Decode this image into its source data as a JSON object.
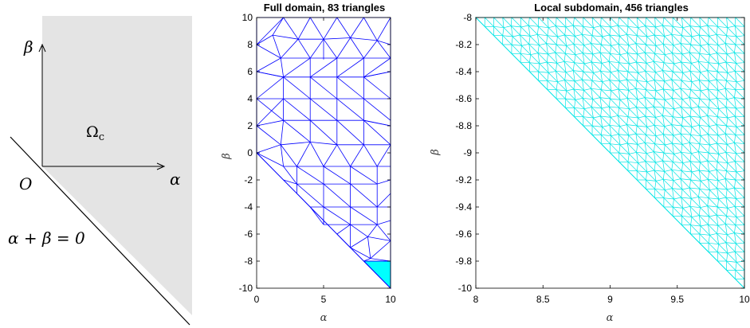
{
  "sketch": {
    "beta_label": "β",
    "alpha_label": "α",
    "origin_label": "O",
    "omega_label": "Ωc",
    "line_label": "α + β = 0",
    "region_color": "#e4e4e4"
  },
  "panels": [
    {
      "title": "Full domain, 83 triangles",
      "xlabel": "α",
      "ylabel": "β",
      "xlim": [
        0,
        10
      ],
      "ylim": [
        -10,
        10
      ],
      "xticks": [
        "0",
        "5",
        "10"
      ],
      "yticks": [
        "-10",
        "-8",
        "-6",
        "-4",
        "-2",
        "0",
        "2",
        "4",
        "6",
        "8",
        "10"
      ],
      "mesh_color": "#0000ff",
      "highlight_color": "#00ffff"
    },
    {
      "title": "Local subdomain, 456 triangles",
      "xlabel": "α",
      "ylabel": "β",
      "xlim": [
        8,
        10
      ],
      "ylim": [
        -10,
        -8
      ],
      "xticks": [
        "8",
        "8.5",
        "9",
        "9.5",
        "10"
      ],
      "yticks": [
        "-10",
        "-9.8",
        "-9.6",
        "-9.4",
        "-9.2",
        "-9",
        "-8.8",
        "-8.6",
        "-8.4",
        "-8.2",
        "-8"
      ],
      "mesh_color": "#00e5e5"
    }
  ]
}
